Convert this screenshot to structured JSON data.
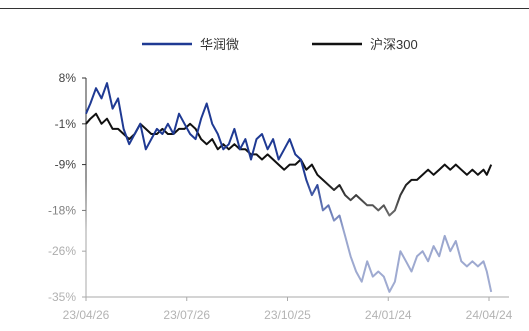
{
  "chart_data": {
    "type": "line",
    "title": "",
    "xlabel": "",
    "ylabel": "",
    "ylim": [
      -35,
      8
    ],
    "yticks": [
      "8%",
      "-1%",
      "-9%",
      "-18%",
      "-26%",
      "-35%"
    ],
    "ytick_values": [
      8,
      -1,
      -9,
      -18,
      -26,
      -35
    ],
    "xticks": [
      "23/04/26",
      "23/07/26",
      "23/10/25",
      "24/01/24",
      "24/04/24"
    ],
    "xtick_dates": [
      "2023-04-26",
      "2023-07-26",
      "2023-10-25",
      "2024-01-24",
      "2024-04-24"
    ],
    "legend_position": "top",
    "series": [
      {
        "name": "华润微",
        "color": "#1f3a93",
        "points": [
          [
            "2023-04-26",
            1
          ],
          [
            "2023-04-30",
            3
          ],
          [
            "2023-05-05",
            6
          ],
          [
            "2023-05-10",
            4
          ],
          [
            "2023-05-15",
            7
          ],
          [
            "2023-05-20",
            2
          ],
          [
            "2023-05-25",
            4
          ],
          [
            "2023-05-30",
            -2
          ],
          [
            "2023-06-04",
            -5
          ],
          [
            "2023-06-09",
            -3
          ],
          [
            "2023-06-14",
            -1
          ],
          [
            "2023-06-19",
            -6
          ],
          [
            "2023-06-24",
            -4
          ],
          [
            "2023-06-29",
            -2
          ],
          [
            "2023-07-04",
            -3
          ],
          [
            "2023-07-09",
            -1
          ],
          [
            "2023-07-14",
            -3
          ],
          [
            "2023-07-19",
            1
          ],
          [
            "2023-07-24",
            -1
          ],
          [
            "2023-07-29",
            -3
          ],
          [
            "2023-08-03",
            -4
          ],
          [
            "2023-08-08",
            0
          ],
          [
            "2023-08-13",
            3
          ],
          [
            "2023-08-18",
            -1
          ],
          [
            "2023-08-23",
            -3
          ],
          [
            "2023-08-28",
            -6
          ],
          [
            "2023-09-02",
            -5
          ],
          [
            "2023-09-07",
            -2
          ],
          [
            "2023-09-12",
            -6
          ],
          [
            "2023-09-17",
            -4
          ],
          [
            "2023-09-22",
            -8
          ],
          [
            "2023-09-27",
            -4
          ],
          [
            "2023-10-02",
            -3
          ],
          [
            "2023-10-07",
            -6
          ],
          [
            "2023-10-12",
            -4
          ],
          [
            "2023-10-17",
            -8
          ],
          [
            "2023-10-22",
            -6
          ],
          [
            "2023-10-27",
            -4
          ],
          [
            "2023-11-01",
            -7
          ],
          [
            "2023-11-06",
            -8
          ],
          [
            "2023-11-11",
            -12
          ],
          [
            "2023-11-16",
            -15
          ],
          [
            "2023-11-21",
            -13
          ],
          [
            "2023-11-26",
            -18
          ],
          [
            "2023-12-01",
            -17
          ],
          [
            "2023-12-06",
            -20
          ],
          [
            "2023-12-11",
            -19
          ],
          [
            "2023-12-16",
            -23
          ],
          [
            "2023-12-21",
            -27
          ],
          [
            "2023-12-26",
            -30
          ],
          [
            "2023-12-31",
            -32
          ],
          [
            "2024-01-05",
            -28
          ],
          [
            "2024-01-10",
            -31
          ],
          [
            "2024-01-15",
            -30
          ],
          [
            "2024-01-20",
            -31
          ],
          [
            "2024-01-25",
            -34
          ],
          [
            "2024-01-30",
            -32
          ],
          [
            "2024-02-04",
            -26
          ],
          [
            "2024-02-09",
            -28
          ],
          [
            "2024-02-14",
            -30
          ],
          [
            "2024-02-19",
            -27
          ],
          [
            "2024-02-24",
            -26
          ],
          [
            "2024-02-29",
            -28
          ],
          [
            "2024-03-05",
            -25
          ],
          [
            "2024-03-10",
            -27
          ],
          [
            "2024-03-15",
            -23
          ],
          [
            "2024-03-20",
            -26
          ],
          [
            "2024-03-25",
            -24
          ],
          [
            "2024-03-30",
            -28
          ],
          [
            "2024-04-04",
            -29
          ],
          [
            "2024-04-09",
            -28
          ],
          [
            "2024-04-14",
            -29
          ],
          [
            "2024-04-19",
            -28
          ],
          [
            "2024-04-22",
            -30
          ],
          [
            "2024-04-26",
            -34
          ]
        ]
      },
      {
        "name": "沪深300",
        "color": "#111111",
        "points": [
          [
            "2023-04-26",
            -1
          ],
          [
            "2023-04-30",
            0
          ],
          [
            "2023-05-05",
            1
          ],
          [
            "2023-05-10",
            -1
          ],
          [
            "2023-05-15",
            0
          ],
          [
            "2023-05-20",
            -2
          ],
          [
            "2023-05-25",
            -2
          ],
          [
            "2023-05-30",
            -3
          ],
          [
            "2023-06-04",
            -4
          ],
          [
            "2023-06-09",
            -3
          ],
          [
            "2023-06-14",
            -1
          ],
          [
            "2023-06-19",
            -2
          ],
          [
            "2023-06-24",
            -3
          ],
          [
            "2023-06-29",
            -3
          ],
          [
            "2023-07-04",
            -2
          ],
          [
            "2023-07-09",
            -3
          ],
          [
            "2023-07-14",
            -3
          ],
          [
            "2023-07-19",
            -2
          ],
          [
            "2023-07-24",
            -2
          ],
          [
            "2023-07-29",
            -1
          ],
          [
            "2023-08-03",
            -2
          ],
          [
            "2023-08-08",
            -4
          ],
          [
            "2023-08-13",
            -5
          ],
          [
            "2023-08-18",
            -4
          ],
          [
            "2023-08-23",
            -6
          ],
          [
            "2023-08-28",
            -5
          ],
          [
            "2023-09-02",
            -6
          ],
          [
            "2023-09-07",
            -5
          ],
          [
            "2023-09-12",
            -6
          ],
          [
            "2023-09-17",
            -6
          ],
          [
            "2023-09-22",
            -7
          ],
          [
            "2023-09-27",
            -7
          ],
          [
            "2023-10-02",
            -8
          ],
          [
            "2023-10-07",
            -7
          ],
          [
            "2023-10-12",
            -8
          ],
          [
            "2023-10-17",
            -9
          ],
          [
            "2023-10-22",
            -10
          ],
          [
            "2023-10-27",
            -9
          ],
          [
            "2023-11-01",
            -9
          ],
          [
            "2023-11-06",
            -8
          ],
          [
            "2023-11-11",
            -10
          ],
          [
            "2023-11-16",
            -9
          ],
          [
            "2023-11-21",
            -11
          ],
          [
            "2023-11-26",
            -12
          ],
          [
            "2023-12-01",
            -13
          ],
          [
            "2023-12-06",
            -14
          ],
          [
            "2023-12-11",
            -13
          ],
          [
            "2023-12-16",
            -15
          ],
          [
            "2023-12-21",
            -16
          ],
          [
            "2023-12-26",
            -15
          ],
          [
            "2023-12-31",
            -16
          ],
          [
            "2024-01-05",
            -17
          ],
          [
            "2024-01-10",
            -17
          ],
          [
            "2024-01-15",
            -18
          ],
          [
            "2024-01-20",
            -17
          ],
          [
            "2024-01-25",
            -19
          ],
          [
            "2024-01-30",
            -18
          ],
          [
            "2024-02-04",
            -15
          ],
          [
            "2024-02-09",
            -13
          ],
          [
            "2024-02-14",
            -12
          ],
          [
            "2024-02-19",
            -12
          ],
          [
            "2024-02-24",
            -11
          ],
          [
            "2024-02-29",
            -10
          ],
          [
            "2024-03-05",
            -11
          ],
          [
            "2024-03-10",
            -10
          ],
          [
            "2024-03-15",
            -9
          ],
          [
            "2024-03-20",
            -10
          ],
          [
            "2024-03-25",
            -9
          ],
          [
            "2024-03-30",
            -10
          ],
          [
            "2024-04-04",
            -11
          ],
          [
            "2024-04-09",
            -10
          ],
          [
            "2024-04-14",
            -11
          ],
          [
            "2024-04-19",
            -10
          ],
          [
            "2024-04-22",
            -11
          ],
          [
            "2024-04-26",
            -9
          ]
        ]
      }
    ]
  }
}
